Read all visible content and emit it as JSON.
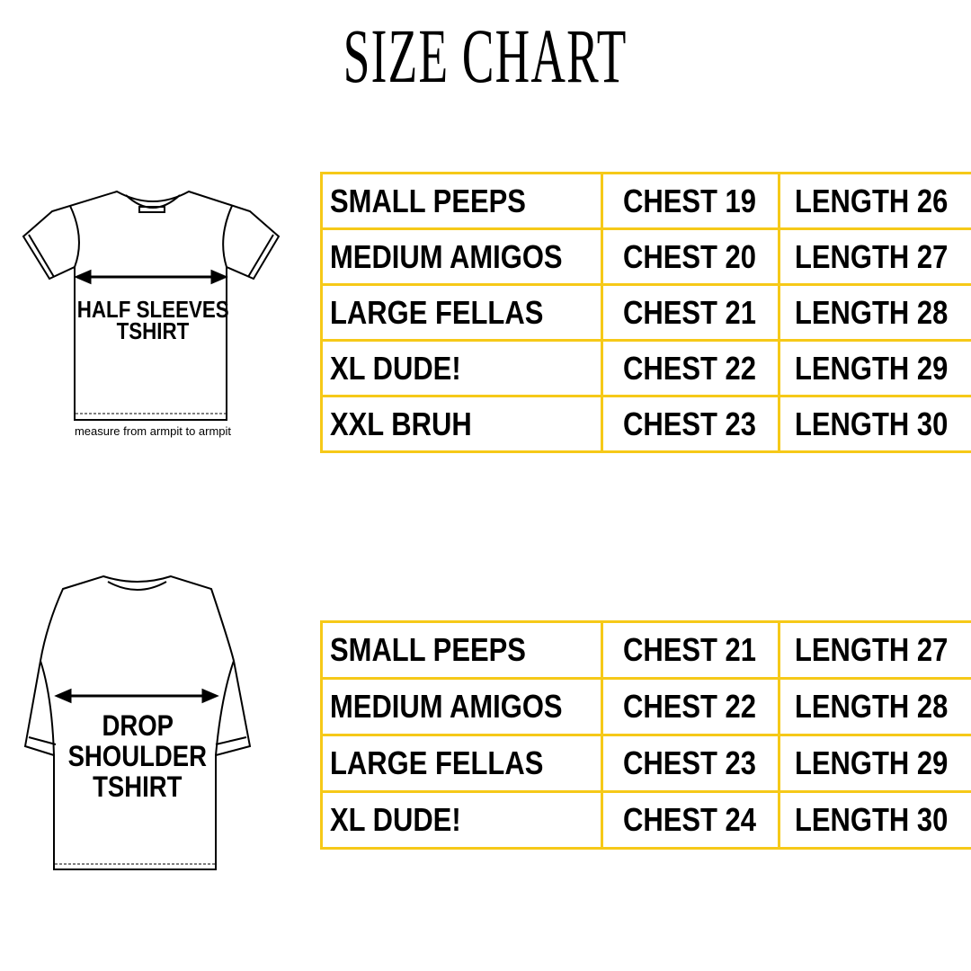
{
  "title": "SIZE CHART",
  "accent_color": "#f6c918",
  "half_sleeves": {
    "label_line1": "HALF SLEEVES",
    "label_line2": "TSHIRT",
    "note": "measure from armpit to armpit",
    "rows": [
      {
        "size": "SMALL PEEPS",
        "chest": "CHEST 19",
        "length": "LENGTH 26"
      },
      {
        "size": "MEDIUM AMIGOS",
        "chest": "CHEST 20",
        "length": "LENGTH 27"
      },
      {
        "size": "LARGE FELLAS",
        "chest": "CHEST 21",
        "length": "LENGTH 28"
      },
      {
        "size": "XL DUDE!",
        "chest": "CHEST 22",
        "length": "LENGTH 29"
      },
      {
        "size": "XXL BRUH",
        "chest": "CHEST 23",
        "length": "LENGTH 30"
      }
    ]
  },
  "drop_shoulder": {
    "label_line1": "DROP",
    "label_line2": "SHOULDER",
    "label_line3": "TSHIRT",
    "rows": [
      {
        "size": "SMALL PEEPS",
        "chest": "CHEST 21",
        "length": "LENGTH 27"
      },
      {
        "size": "MEDIUM AMIGOS",
        "chest": "CHEST 22",
        "length": "LENGTH 28"
      },
      {
        "size": "LARGE FELLAS",
        "chest": "CHEST 23",
        "length": "LENGTH 29"
      },
      {
        "size": "XL DUDE!",
        "chest": "CHEST 24",
        "length": "LENGTH 30"
      }
    ]
  }
}
